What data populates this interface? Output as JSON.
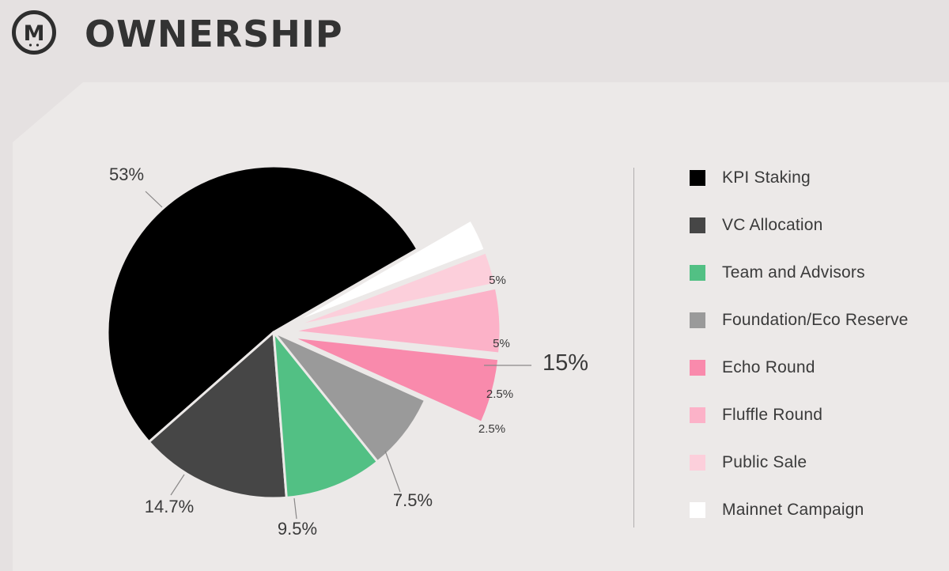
{
  "header": {
    "logo_letter": "M",
    "title": "OWNERSHIP"
  },
  "chart_data": {
    "type": "pie",
    "title": "",
    "series": [
      {
        "name": "KPI Staking",
        "value": 53,
        "label": "53%",
        "color": "#000000"
      },
      {
        "name": "VC Allocation",
        "value": 14.7,
        "label": "14.7%",
        "color": "#464646"
      },
      {
        "name": "Team and Advisors",
        "value": 9.5,
        "label": "9.5%",
        "color": "#52c084"
      },
      {
        "name": "Foundation/Eco Reserve",
        "value": 7.5,
        "label": "7.5%",
        "color": "#9a9a9a"
      },
      {
        "name": "Echo Round",
        "value": 5,
        "label": "5%",
        "color": "#f98aac"
      },
      {
        "name": "Fluffle Round",
        "value": 5,
        "label": "5%",
        "color": "#fcb2c8"
      },
      {
        "name": "Public Sale",
        "value": 2.5,
        "label": "2.5%",
        "color": "#fccfdb"
      },
      {
        "name": "Mainnet Campaign",
        "value": 2.5,
        "label": "2.5%",
        "color": "#ffffff"
      }
    ],
    "group_annotation": {
      "label": "15%",
      "members": [
        "Echo Round",
        "Fluffle Round",
        "Public Sale",
        "Mainnet Campaign"
      ]
    },
    "legend_placement": "right"
  }
}
